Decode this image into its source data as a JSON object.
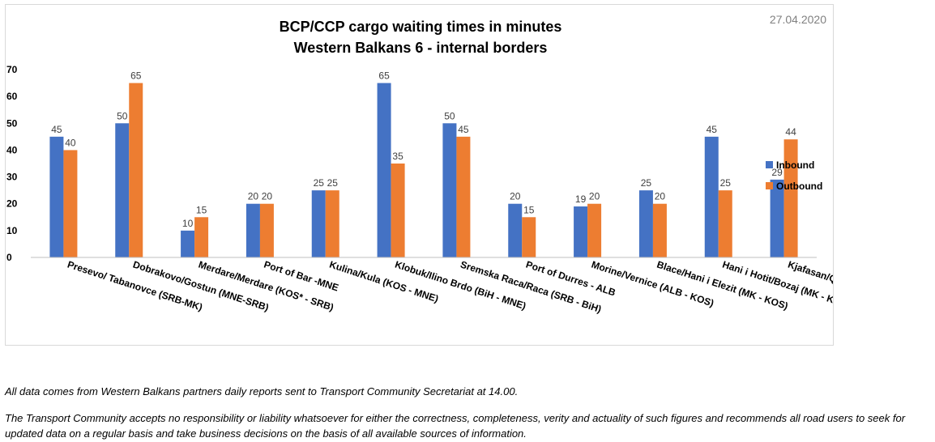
{
  "date": "27.04.2020",
  "chart_data": {
    "type": "bar",
    "title": [
      "BCP/CCP cargo waiting times in minutes",
      "Western Balkans 6 - internal borders"
    ],
    "categories": [
      "Presevo/ Tabanovce (SRB-MK)",
      "Dobrakovo/Gostun (MNE-SRB)",
      "Merdare/Merdare (KOS* - SRB)",
      "Port of Bar -MNE",
      "Kulina/Kula (KOS - MNE)",
      "Klobuk/Ilino Brdo (BiH - MNE)",
      "Sremska Raca/Raca (SRB - BiH)",
      "Port of Durres - ALB",
      "Morine/Vernice (ALB - KOS)",
      "Blace/Hani i Elezit (MK - KOS)",
      "Hani i Hotit/Bozaj (MK - KOS)",
      "Kjafasan/Qafe Thane (MK - ALB)"
    ],
    "series": [
      {
        "name": "Inbound",
        "color": "#4472c4",
        "values": [
          45,
          50,
          10,
          20,
          25,
          65,
          50,
          20,
          19,
          25,
          45,
          29
        ]
      },
      {
        "name": "Outbound",
        "color": "#ed7d31",
        "values": [
          40,
          65,
          15,
          20,
          25,
          35,
          45,
          15,
          20,
          20,
          25,
          44
        ]
      }
    ],
    "ylim": [
      0,
      70
    ],
    "yticks": [
      "0",
      "10",
      "20",
      "30",
      "40",
      "50",
      "60",
      "70"
    ],
    "grid": false,
    "legend": "right",
    "data_labels": true
  },
  "footnotes": {
    "line1": "All data comes from Western Balkans partners daily reports sent to Transport Community Secretariat at 14.00.",
    "line2": "The Transport Community accepts no responsibility or liability whatsoever for either the correctness, completeness, verity and actuality of such figures and recommends all road users to seek for updated data on a regular basis and take business decisions on the basis of all available sources of information."
  }
}
